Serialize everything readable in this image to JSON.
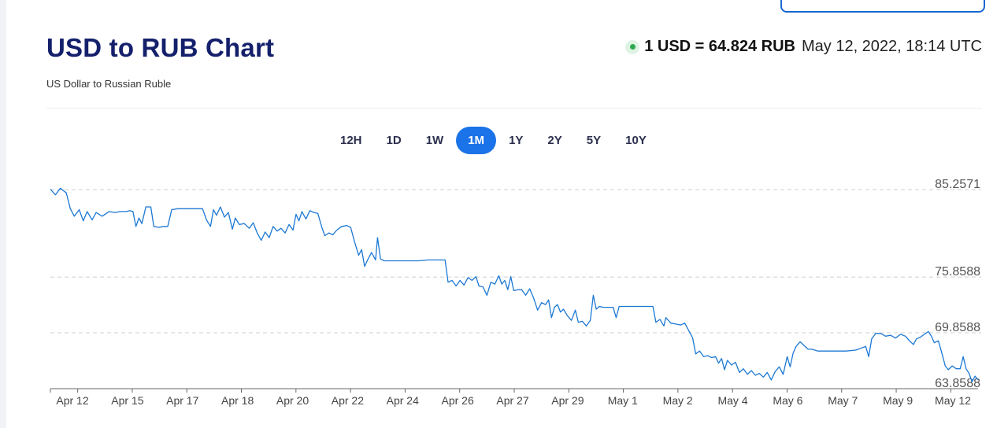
{
  "header": {
    "title": "USD to RUB Chart",
    "subtitle": "US Dollar to Russian Ruble",
    "rate": "1 USD = 64.824 RUB",
    "timestamp": "May 12, 2022, 18:14 UTC"
  },
  "periods": {
    "items": [
      "12H",
      "1D",
      "1W",
      "1M",
      "1Y",
      "2Y",
      "5Y",
      "10Y"
    ],
    "active": "1M"
  },
  "colors": {
    "title": "#14206b",
    "accent": "#1a73e8",
    "line": "#1c78d4",
    "live": "#2fa84f"
  },
  "chart_data": {
    "type": "line",
    "title": "",
    "xlabel": "",
    "ylabel": "",
    "y_tick_labels": [
      "85.2571",
      "75.8588",
      "69.8588",
      "63.8588"
    ],
    "y_ticks": [
      85.2571,
      75.8588,
      69.8588,
      63.8588
    ],
    "ylim": [
      63.8588,
      85.2571
    ],
    "x_tick_labels": [
      "Apr 12",
      "Apr 15",
      "Apr 17",
      "Apr 18",
      "Apr 20",
      "Apr 22",
      "Apr 24",
      "Apr 26",
      "Apr 27",
      "Apr 29",
      "May 1",
      "May 2",
      "May 4",
      "May 6",
      "May 7",
      "May 9",
      "May 12"
    ],
    "grid": "horizontal dashed",
    "series": [
      {
        "values": [
          [
            0,
            85.3
          ],
          [
            0.5,
            84.7
          ],
          [
            1.0,
            85.4
          ],
          [
            1.6,
            84.9
          ],
          [
            2.0,
            83.2
          ],
          [
            2.4,
            82.4
          ],
          [
            2.9,
            83.1
          ],
          [
            3.3,
            81.9
          ],
          [
            3.7,
            82.9
          ],
          [
            4.2,
            82.0
          ],
          [
            4.6,
            82.8
          ],
          [
            5.2,
            82.4
          ],
          [
            5.9,
            82.9
          ],
          [
            6.5,
            82.8
          ],
          [
            7.0,
            82.9
          ],
          [
            7.6,
            82.9
          ],
          [
            8.0,
            83.0
          ],
          [
            8.3,
            82.9
          ],
          [
            8.6,
            81.3
          ],
          [
            8.9,
            82.2
          ],
          [
            9.2,
            81.6
          ],
          [
            9.6,
            83.4
          ],
          [
            10.1,
            83.4
          ],
          [
            10.4,
            81.3
          ],
          [
            10.9,
            81.2
          ],
          [
            11.4,
            81.3
          ],
          [
            11.8,
            81.3
          ],
          [
            12.2,
            83.1
          ],
          [
            12.8,
            83.2
          ],
          [
            13.4,
            83.2
          ],
          [
            14.0,
            83.2
          ],
          [
            14.6,
            83.2
          ],
          [
            15.3,
            83.2
          ],
          [
            15.7,
            82.0
          ],
          [
            16.1,
            81.3
          ],
          [
            16.4,
            83.1
          ],
          [
            16.7,
            82.5
          ],
          [
            17.1,
            83.4
          ],
          [
            17.5,
            82.3
          ],
          [
            17.9,
            82.8
          ],
          [
            18.3,
            81.0
          ],
          [
            18.6,
            82.2
          ],
          [
            19.0,
            81.5
          ],
          [
            19.5,
            81.6
          ],
          [
            20.0,
            81.1
          ],
          [
            20.4,
            81.7
          ],
          [
            20.8,
            80.6
          ],
          [
            21.2,
            79.8
          ],
          [
            21.6,
            80.7
          ],
          [
            22.0,
            80.1
          ],
          [
            22.4,
            81.3
          ],
          [
            22.8,
            80.8
          ],
          [
            23.2,
            81.1
          ],
          [
            23.6,
            80.6
          ],
          [
            24.0,
            81.5
          ],
          [
            24.4,
            80.9
          ],
          [
            24.7,
            82.6
          ],
          [
            25.0,
            81.9
          ],
          [
            25.3,
            82.9
          ],
          [
            25.7,
            82.1
          ],
          [
            26.1,
            83.0
          ],
          [
            26.5,
            82.8
          ],
          [
            26.9,
            82.7
          ],
          [
            27.3,
            81.2
          ],
          [
            27.6,
            80.3
          ],
          [
            28.0,
            80.6
          ],
          [
            28.4,
            80.4
          ],
          [
            28.8,
            80.9
          ],
          [
            29.3,
            81.3
          ],
          [
            29.8,
            81.4
          ],
          [
            30.2,
            81.2
          ],
          [
            30.6,
            79.6
          ],
          [
            31.0,
            78.2
          ],
          [
            31.3,
            78.8
          ],
          [
            31.6,
            77.0
          ],
          [
            31.9,
            77.7
          ],
          [
            32.3,
            78.5
          ],
          [
            32.7,
            77.7
          ],
          [
            32.9,
            80.1
          ],
          [
            33.2,
            77.8
          ],
          [
            33.6,
            77.6
          ],
          [
            34.2,
            77.6
          ],
          [
            35.0,
            77.6
          ],
          [
            36.0,
            77.6
          ],
          [
            37.0,
            77.6
          ],
          [
            38.0,
            77.7
          ],
          [
            39.0,
            77.7
          ],
          [
            39.7,
            77.7
          ],
          [
            40.0,
            75.3
          ],
          [
            40.4,
            75.5
          ],
          [
            40.8,
            74.9
          ],
          [
            41.2,
            75.5
          ],
          [
            41.6,
            75.0
          ],
          [
            42.0,
            75.8
          ],
          [
            42.4,
            75.5
          ],
          [
            42.8,
            75.9
          ],
          [
            43.1,
            74.9
          ],
          [
            43.5,
            74.8
          ],
          [
            43.9,
            73.9
          ],
          [
            44.3,
            75.3
          ],
          [
            44.7,
            75.1
          ],
          [
            45.1,
            76.0
          ],
          [
            45.4,
            75.1
          ],
          [
            45.7,
            75.5
          ],
          [
            46.0,
            74.5
          ],
          [
            46.3,
            75.9
          ],
          [
            46.6,
            74.4
          ],
          [
            47.0,
            74.5
          ],
          [
            47.4,
            74.5
          ],
          [
            47.8,
            73.9
          ],
          [
            48.2,
            74.6
          ],
          [
            48.6,
            73.6
          ],
          [
            49.0,
            72.3
          ],
          [
            49.4,
            73.1
          ],
          [
            49.8,
            72.9
          ],
          [
            50.1,
            73.4
          ],
          [
            50.4,
            71.5
          ],
          [
            50.7,
            72.6
          ],
          [
            51.0,
            72.9
          ],
          [
            51.3,
            72.1
          ],
          [
            51.6,
            72.4
          ],
          [
            52.0,
            71.7
          ],
          [
            52.4,
            71.2
          ],
          [
            52.8,
            72.3
          ],
          [
            53.1,
            71.0
          ],
          [
            53.5,
            71.1
          ],
          [
            53.9,
            70.6
          ],
          [
            54.3,
            71.2
          ],
          [
            54.6,
            73.9
          ],
          [
            54.9,
            72.4
          ],
          [
            55.2,
            72.7
          ],
          [
            55.6,
            72.6
          ],
          [
            56.1,
            72.6
          ],
          [
            56.6,
            72.6
          ],
          [
            56.9,
            71.5
          ],
          [
            57.2,
            72.7
          ],
          [
            57.8,
            72.7
          ],
          [
            58.8,
            72.7
          ],
          [
            59.8,
            72.7
          ],
          [
            60.6,
            72.7
          ],
          [
            60.9,
            71.0
          ],
          [
            61.3,
            71.3
          ],
          [
            61.7,
            70.6
          ],
          [
            61.9,
            71.5
          ],
          [
            62.4,
            70.9
          ],
          [
            62.9,
            70.8
          ],
          [
            63.4,
            70.7
          ],
          [
            63.8,
            70.9
          ],
          [
            64.2,
            70.1
          ],
          [
            64.6,
            69.3
          ],
          [
            64.9,
            67.6
          ],
          [
            65.3,
            67.9
          ],
          [
            65.7,
            67.3
          ],
          [
            66.1,
            67.4
          ],
          [
            66.5,
            67.2
          ],
          [
            66.9,
            67.3
          ],
          [
            67.2,
            66.6
          ],
          [
            67.5,
            67.1
          ],
          [
            67.8,
            65.9
          ],
          [
            68.1,
            66.9
          ],
          [
            68.5,
            66.4
          ],
          [
            68.9,
            66.7
          ],
          [
            69.3,
            65.6
          ],
          [
            69.7,
            66.0
          ],
          [
            70.1,
            65.4
          ],
          [
            70.5,
            65.8
          ],
          [
            70.9,
            65.3
          ],
          [
            71.3,
            65.5
          ],
          [
            71.7,
            65.1
          ],
          [
            72.1,
            65.6
          ],
          [
            72.5,
            64.8
          ],
          [
            72.9,
            65.7
          ],
          [
            73.3,
            66.2
          ],
          [
            73.7,
            65.4
          ],
          [
            74.1,
            67.3
          ],
          [
            74.4,
            66.2
          ],
          [
            74.7,
            67.7
          ],
          [
            75.0,
            68.4
          ],
          [
            75.4,
            68.9
          ],
          [
            75.8,
            68.5
          ],
          [
            76.2,
            68.1
          ],
          [
            76.6,
            68.1
          ],
          [
            77.2,
            67.9
          ],
          [
            78.0,
            67.9
          ],
          [
            79.0,
            67.9
          ],
          [
            80.0,
            67.9
          ],
          [
            81.0,
            68.0
          ],
          [
            81.5,
            68.2
          ],
          [
            82.0,
            68.4
          ],
          [
            82.3,
            67.3
          ],
          [
            82.6,
            69.2
          ],
          [
            83.0,
            69.8
          ],
          [
            83.5,
            69.8
          ],
          [
            84.0,
            69.5
          ],
          [
            84.5,
            69.6
          ],
          [
            85.0,
            69.3
          ],
          [
            85.5,
            69.7
          ],
          [
            86.0,
            69.5
          ],
          [
            86.4,
            69.0
          ],
          [
            86.8,
            68.6
          ],
          [
            87.1,
            69.2
          ],
          [
            87.5,
            69.4
          ],
          [
            87.9,
            69.7
          ],
          [
            88.3,
            70.0
          ],
          [
            88.6,
            69.5
          ],
          [
            88.9,
            68.8
          ],
          [
            89.3,
            69.0
          ],
          [
            89.6,
            67.9
          ],
          [
            90.0,
            66.3
          ],
          [
            90.3,
            65.9
          ],
          [
            90.7,
            66.3
          ],
          [
            91.1,
            66.0
          ],
          [
            91.5,
            66.0
          ],
          [
            91.8,
            67.3
          ],
          [
            92.1,
            66.0
          ],
          [
            92.4,
            65.5
          ],
          [
            92.7,
            64.6
          ],
          [
            93.0,
            65.2
          ],
          [
            93.3,
            64.8
          ]
        ]
      }
    ]
  }
}
